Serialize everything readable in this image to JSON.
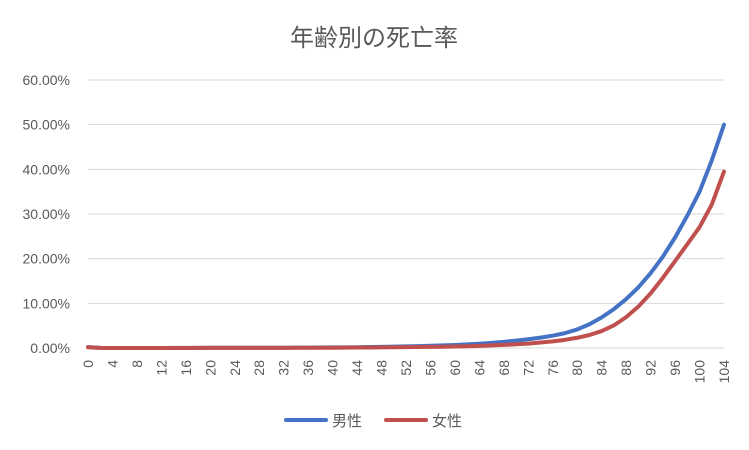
{
  "chart_data": {
    "type": "line",
    "title": "年齢別の死亡率",
    "xlabel": "",
    "ylabel": "",
    "x": [
      0,
      2,
      4,
      6,
      8,
      10,
      12,
      14,
      16,
      18,
      20,
      22,
      24,
      26,
      28,
      30,
      32,
      34,
      36,
      38,
      40,
      42,
      44,
      46,
      48,
      50,
      52,
      54,
      56,
      58,
      60,
      62,
      64,
      66,
      68,
      70,
      72,
      74,
      76,
      78,
      80,
      82,
      84,
      86,
      88,
      90,
      92,
      94,
      96,
      98,
      100,
      102,
      104
    ],
    "x_tick_labels": [
      "0",
      "4",
      "8",
      "12",
      "16",
      "20",
      "24",
      "28",
      "32",
      "36",
      "40",
      "44",
      "48",
      "52",
      "56",
      "60",
      "64",
      "68",
      "72",
      "76",
      "80",
      "84",
      "88",
      "92",
      "96",
      "100",
      "104"
    ],
    "y_tick_labels": [
      "0.00%",
      "10.00%",
      "20.00%",
      "30.00%",
      "40.00%",
      "50.00%",
      "60.00%"
    ],
    "ylim": [
      0,
      0.6
    ],
    "grid": true,
    "legend_position": "bottom",
    "series": [
      {
        "name": "男性",
        "color": "#4472C4",
        "values": [
          0.002,
          0.0003,
          0.0001,
          0.0001,
          0.0001,
          0.0001,
          0.0001,
          0.0002,
          0.0002,
          0.0004,
          0.0005,
          0.0005,
          0.0006,
          0.0006,
          0.0006,
          0.0007,
          0.0007,
          0.0008,
          0.0009,
          0.0011,
          0.0013,
          0.0015,
          0.0018,
          0.0021,
          0.0026,
          0.0031,
          0.0036,
          0.0043,
          0.005,
          0.0058,
          0.0068,
          0.0081,
          0.0096,
          0.0115,
          0.0138,
          0.0165,
          0.0196,
          0.0232,
          0.0276,
          0.0333,
          0.0415,
          0.0532,
          0.0686,
          0.0871,
          0.1095,
          0.1359,
          0.1675,
          0.2045,
          0.2474,
          0.2963,
          0.35,
          0.42,
          0.5
        ]
      },
      {
        "name": "女性",
        "color": "#C0504D",
        "values": [
          0.0018,
          0.0002,
          0.0001,
          0.0001,
          0.0001,
          0.0001,
          0.0001,
          0.0001,
          0.0001,
          0.0002,
          0.0002,
          0.0002,
          0.0003,
          0.0003,
          0.0003,
          0.0004,
          0.0004,
          0.0005,
          0.0005,
          0.0006,
          0.0007,
          0.0008,
          0.001,
          0.0012,
          0.0014,
          0.0016,
          0.0019,
          0.0022,
          0.0025,
          0.0029,
          0.0034,
          0.004,
          0.0048,
          0.0058,
          0.0069,
          0.0083,
          0.0099,
          0.0122,
          0.0149,
          0.0183,
          0.0229,
          0.0291,
          0.0379,
          0.0507,
          0.0691,
          0.0928,
          0.1224,
          0.1571,
          0.1947,
          0.2323,
          0.2704,
          0.3212,
          0.395
        ]
      }
    ]
  }
}
